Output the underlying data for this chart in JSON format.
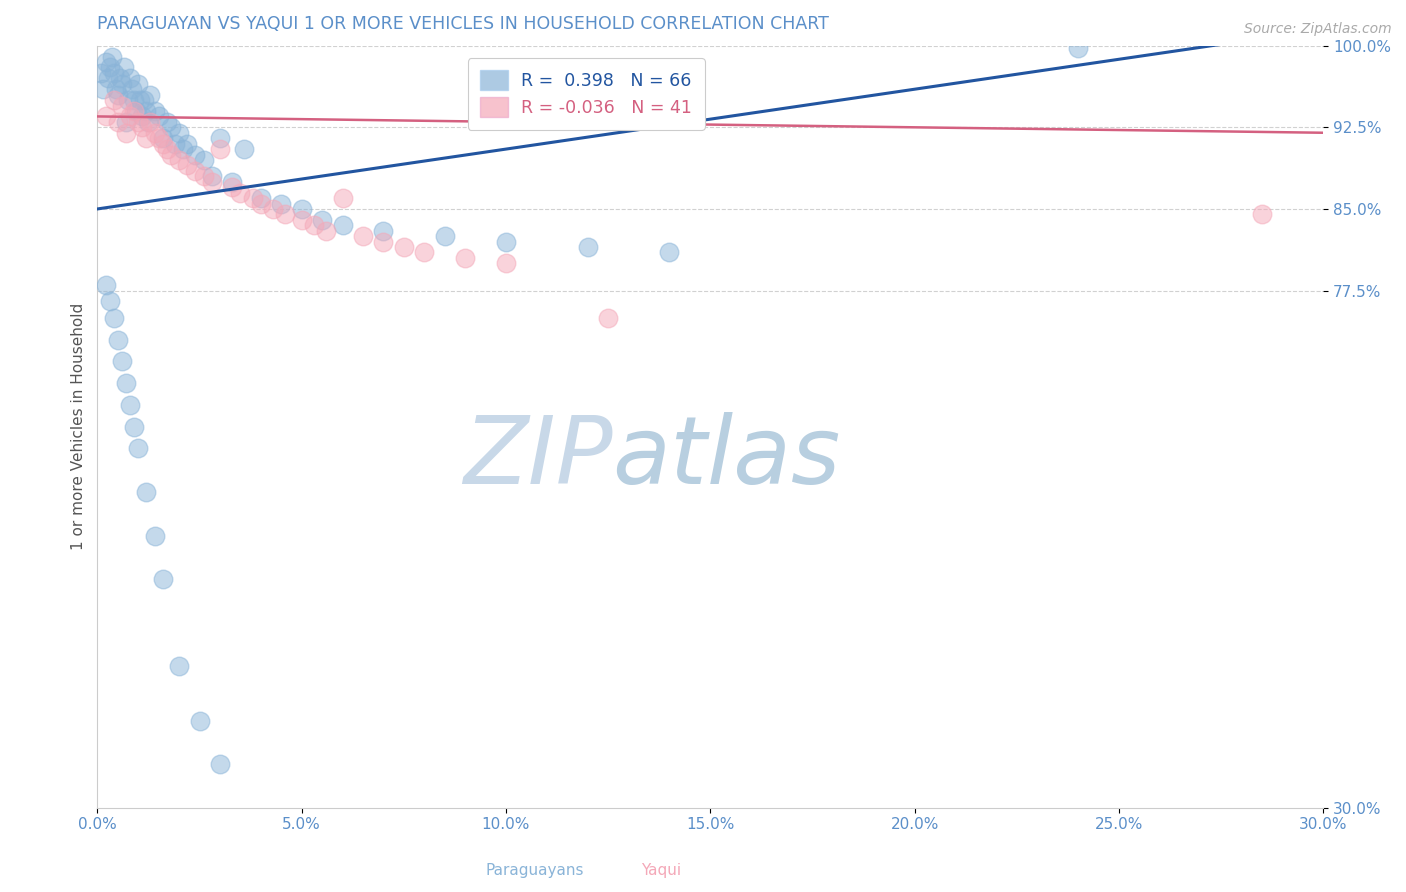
{
  "title": "PARAGUAYAN VS YAQUI 1 OR MORE VEHICLES IN HOUSEHOLD CORRELATION CHART",
  "source": "Source: ZipAtlas.com",
  "xlabel_paraguayans": "Paraguayans",
  "xlabel_yaqui": "Yaqui",
  "ylabel": "1 or more Vehicles in Household",
  "xlim": [
    0.0,
    30.0
  ],
  "ylim": [
    30.0,
    100.0
  ],
  "xticks": [
    0.0,
    5.0,
    10.0,
    15.0,
    20.0,
    25.0,
    30.0
  ],
  "yticks": [
    100.0,
    92.5,
    85.0,
    77.5,
    30.0
  ],
  "paraguayan_R": 0.398,
  "paraguayan_N": 66,
  "yaqui_R": -0.036,
  "yaqui_N": 41,
  "blue_color": "#8ab4d8",
  "pink_color": "#f4a8b8",
  "blue_line_color": "#2255a0",
  "pink_line_color": "#d46080",
  "title_color": "#5b8fc9",
  "axis_label_color": "#555555",
  "tick_color": "#5b8fc9",
  "grid_color": "#cccccc",
  "paraguayan_x": [
    0.1,
    0.15,
    0.2,
    0.25,
    0.3,
    0.35,
    0.4,
    0.45,
    0.5,
    0.55,
    0.6,
    0.65,
    0.7,
    0.75,
    0.8,
    0.85,
    0.9,
    0.95,
    1.0,
    1.05,
    1.1,
    1.15,
    1.2,
    1.25,
    1.3,
    1.4,
    1.5,
    1.6,
    1.7,
    1.8,
    1.9,
    2.0,
    2.1,
    2.2,
    2.4,
    2.6,
    2.8,
    3.0,
    3.3,
    3.6,
    4.0,
    4.5,
    5.0,
    5.5,
    6.0,
    7.0,
    8.5,
    10.0,
    12.0,
    14.0,
    0.2,
    0.3,
    0.4,
    0.5,
    0.6,
    0.7,
    0.8,
    0.9,
    1.0,
    1.2,
    1.4,
    1.6,
    2.0,
    2.5,
    3.0,
    24.0
  ],
  "paraguayan_y": [
    97.5,
    96.0,
    98.5,
    97.0,
    98.0,
    99.0,
    97.5,
    96.0,
    95.5,
    97.0,
    96.5,
    98.0,
    93.0,
    95.0,
    97.0,
    96.0,
    95.0,
    94.0,
    96.5,
    95.0,
    93.5,
    95.0,
    94.0,
    93.0,
    95.5,
    94.0,
    93.5,
    91.5,
    93.0,
    92.5,
    91.0,
    92.0,
    90.5,
    91.0,
    90.0,
    89.5,
    88.0,
    91.5,
    87.5,
    90.5,
    86.0,
    85.5,
    85.0,
    84.0,
    83.5,
    83.0,
    82.5,
    82.0,
    81.5,
    81.0,
    78.0,
    76.5,
    75.0,
    73.0,
    71.0,
    69.0,
    67.0,
    65.0,
    63.0,
    59.0,
    55.0,
    51.0,
    43.0,
    38.0,
    34.0,
    99.8
  ],
  "yaqui_x": [
    0.2,
    0.4,
    0.5,
    0.6,
    0.7,
    0.8,
    0.9,
    1.0,
    1.1,
    1.2,
    1.3,
    1.4,
    1.5,
    1.6,
    1.7,
    1.8,
    2.0,
    2.2,
    2.4,
    2.6,
    2.8,
    3.0,
    3.3,
    3.5,
    3.8,
    4.0,
    4.3,
    4.6,
    5.0,
    5.3,
    5.6,
    6.0,
    6.5,
    7.0,
    7.5,
    8.0,
    9.0,
    10.0,
    11.0,
    12.5,
    28.5
  ],
  "yaqui_y": [
    93.5,
    95.0,
    93.0,
    94.5,
    92.0,
    93.5,
    94.0,
    93.0,
    92.5,
    91.5,
    93.0,
    92.0,
    91.5,
    91.0,
    90.5,
    90.0,
    89.5,
    89.0,
    88.5,
    88.0,
    87.5,
    90.5,
    87.0,
    86.5,
    86.0,
    85.5,
    85.0,
    84.5,
    84.0,
    83.5,
    83.0,
    86.0,
    82.5,
    82.0,
    81.5,
    81.0,
    80.5,
    80.0,
    97.0,
    75.0,
    84.5
  ],
  "blue_trendline": [
    0.0,
    30.0,
    85.0,
    101.5
  ],
  "pink_trendline": [
    0.0,
    30.0,
    93.5,
    92.0
  ],
  "watermark_zip_color": "#c8d8e8",
  "watermark_atlas_color": "#b8cfe0"
}
